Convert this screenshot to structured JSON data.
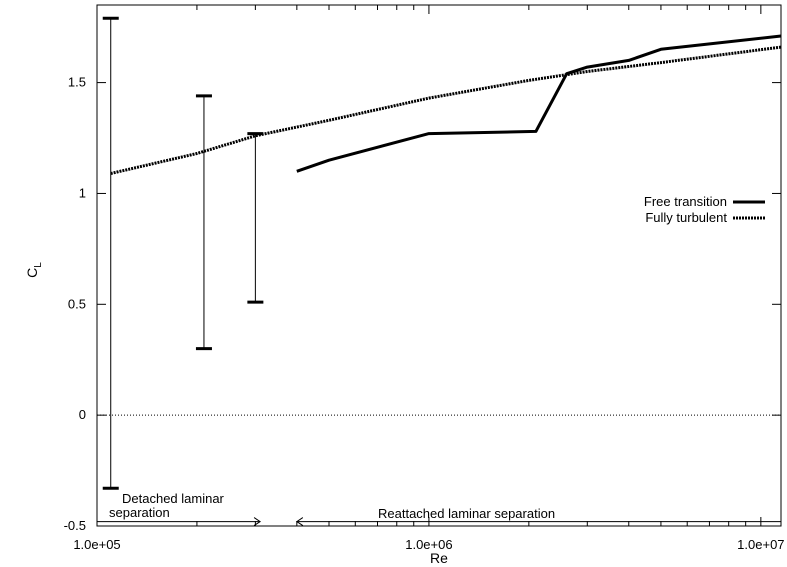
{
  "chart_data": {
    "type": "line",
    "xlabel": "Re",
    "ylabel": "C",
    "ylabel_subscript": "L",
    "x_scale": "log",
    "xlim": [
      100000,
      11500000
    ],
    "ylim": [
      -0.5,
      1.85
    ],
    "x_ticks": [
      {
        "value": 100000,
        "label": "1.0e+05"
      },
      {
        "value": 1000000,
        "label": "1.0e+06"
      },
      {
        "value": 10000000,
        "label": "1.0e+07"
      }
    ],
    "y_ticks": [
      {
        "value": -0.5,
        "label": "-0.5"
      },
      {
        "value": 0,
        "label": "0"
      },
      {
        "value": 0.5,
        "label": "0.5"
      },
      {
        "value": 1,
        "label": "1"
      },
      {
        "value": 1.5,
        "label": "1.5"
      }
    ],
    "zero_line": 0,
    "legend_position": "right",
    "series": [
      {
        "name": "Free transition",
        "style": "solid-thick",
        "color": "#000000",
        "x": [
          400000,
          500000,
          1000000,
          2100000,
          2600000,
          3000000,
          4000000,
          5000000,
          11500000
        ],
        "y": [
          1.1,
          1.15,
          1.27,
          1.28,
          1.54,
          1.57,
          1.6,
          1.65,
          1.71
        ]
      },
      {
        "name": "Fully turbulent",
        "style": "dotted-thick",
        "color": "#000000",
        "x": [
          110000,
          200000,
          300000,
          500000,
          1000000,
          2000000,
          3000000,
          5000000,
          11500000
        ],
        "y": [
          1.09,
          1.18,
          1.26,
          1.33,
          1.43,
          1.51,
          1.55,
          1.59,
          1.66
        ]
      }
    ],
    "error_bars": [
      {
        "x": 110000,
        "low": -0.33,
        "high": 1.79
      },
      {
        "x": 210000,
        "low": 0.3,
        "high": 1.44
      },
      {
        "x": 300000,
        "low": 0.51,
        "high": 1.27
      }
    ],
    "annotations": {
      "detached_line1": "Detached laminar",
      "detached_line2": "separation",
      "reattached": "Reattached laminar separation",
      "detached_range": [
        100000,
        310000
      ],
      "reattached_range": [
        400000,
        11500000
      ],
      "arrow_y": -0.48
    }
  }
}
